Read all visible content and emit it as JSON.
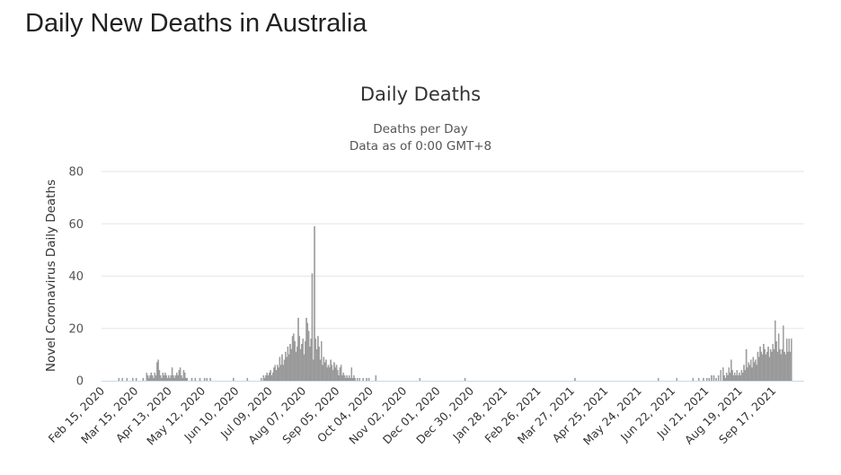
{
  "page": {
    "title": "Daily New Deaths in Australia"
  },
  "chart_data": {
    "type": "bar",
    "title": "Daily Deaths",
    "subtitle_lines": [
      "Deaths per Day",
      "Data as of 0:00 GMT+8"
    ],
    "ylabel": "Novel Coronavirus Daily Deaths",
    "xlabel": "",
    "ylim": [
      0,
      80
    ],
    "y_ticks": [
      0,
      20,
      40,
      60,
      80
    ],
    "grid": true,
    "legend": "none",
    "colors": {
      "bar": "#a0a0a0",
      "bar_stroke": "#8a8a8a",
      "grid": "#e6e6e6",
      "axis": "#ccd6eb"
    },
    "x_start": "2020-02-15",
    "x_end": "2021-10-14",
    "x_tick_labels": [
      "Feb 15, 2020",
      "Mar 15, 2020",
      "Apr 13, 2020",
      "May 12, 2020",
      "Jun 10, 2020",
      "Jul 09, 2020",
      "Aug 07, 2020",
      "Sep 05, 2020",
      "Oct 04, 2020",
      "Nov 02, 2020",
      "Dec 01, 2020",
      "Dec 30, 2020",
      "Jan 28, 2021",
      "Feb 26, 2021",
      "Mar 27, 2021",
      "Apr 25, 2021",
      "May 24, 2021",
      "Jun 22, 2021",
      "Jul 21, 2021",
      "Aug 19, 2021",
      "Sep 17, 2021"
    ],
    "series": [
      {
        "values": [
          {
            "x": "2020-03-01",
            "y": 1
          },
          {
            "x": "2020-03-04",
            "y": 1
          },
          {
            "x": "2020-03-08",
            "y": 1
          },
          {
            "x": "2020-03-13",
            "y": 1
          },
          {
            "x": "2020-03-16",
            "y": 1
          },
          {
            "x": "2020-03-22",
            "y": 1
          },
          {
            "x": "2020-03-25",
            "y": 3
          },
          {
            "x": "2020-03-26",
            "y": 2
          },
          {
            "x": "2020-03-27",
            "y": 1
          },
          {
            "x": "2020-03-28",
            "y": 2
          },
          {
            "x": "2020-03-29",
            "y": 3
          },
          {
            "x": "2020-03-30",
            "y": 2
          },
          {
            "x": "2020-03-31",
            "y": 1
          },
          {
            "x": "2020-04-01",
            "y": 3
          },
          {
            "x": "2020-04-02",
            "y": 2
          },
          {
            "x": "2020-04-03",
            "y": 7
          },
          {
            "x": "2020-04-04",
            "y": 8
          },
          {
            "x": "2020-04-05",
            "y": 4
          },
          {
            "x": "2020-04-06",
            "y": 2
          },
          {
            "x": "2020-04-07",
            "y": 1
          },
          {
            "x": "2020-04-08",
            "y": 3
          },
          {
            "x": "2020-04-09",
            "y": 2
          },
          {
            "x": "2020-04-10",
            "y": 3
          },
          {
            "x": "2020-04-11",
            "y": 2
          },
          {
            "x": "2020-04-12",
            "y": 1
          },
          {
            "x": "2020-04-13",
            "y": 2
          },
          {
            "x": "2020-04-14",
            "y": 1
          },
          {
            "x": "2020-04-15",
            "y": 2
          },
          {
            "x": "2020-04-16",
            "y": 5
          },
          {
            "x": "2020-04-17",
            "y": 2
          },
          {
            "x": "2020-04-18",
            "y": 1
          },
          {
            "x": "2020-04-19",
            "y": 2
          },
          {
            "x": "2020-04-20",
            "y": 3
          },
          {
            "x": "2020-04-21",
            "y": 2
          },
          {
            "x": "2020-04-22",
            "y": 4
          },
          {
            "x": "2020-04-23",
            "y": 5
          },
          {
            "x": "2020-04-24",
            "y": 2
          },
          {
            "x": "2020-04-25",
            "y": 1
          },
          {
            "x": "2020-04-26",
            "y": 4
          },
          {
            "x": "2020-04-27",
            "y": 3
          },
          {
            "x": "2020-04-28",
            "y": 1
          },
          {
            "x": "2020-04-29",
            "y": 1
          },
          {
            "x": "2020-05-03",
            "y": 1
          },
          {
            "x": "2020-05-06",
            "y": 1
          },
          {
            "x": "2020-05-10",
            "y": 1
          },
          {
            "x": "2020-05-14",
            "y": 1
          },
          {
            "x": "2020-05-16",
            "y": 1
          },
          {
            "x": "2020-05-19",
            "y": 1
          },
          {
            "x": "2020-06-08",
            "y": 1
          },
          {
            "x": "2020-06-20",
            "y": 1
          },
          {
            "x": "2020-07-02",
            "y": 1
          },
          {
            "x": "2020-07-04",
            "y": 2
          },
          {
            "x": "2020-07-05",
            "y": 1
          },
          {
            "x": "2020-07-06",
            "y": 2
          },
          {
            "x": "2020-07-07",
            "y": 3
          },
          {
            "x": "2020-07-08",
            "y": 2
          },
          {
            "x": "2020-07-09",
            "y": 3
          },
          {
            "x": "2020-07-10",
            "y": 4
          },
          {
            "x": "2020-07-11",
            "y": 2
          },
          {
            "x": "2020-07-12",
            "y": 3
          },
          {
            "x": "2020-07-13",
            "y": 5
          },
          {
            "x": "2020-07-14",
            "y": 6
          },
          {
            "x": "2020-07-15",
            "y": 4
          },
          {
            "x": "2020-07-16",
            "y": 6
          },
          {
            "x": "2020-07-17",
            "y": 5
          },
          {
            "x": "2020-07-18",
            "y": 9
          },
          {
            "x": "2020-07-19",
            "y": 6
          },
          {
            "x": "2020-07-20",
            "y": 10
          },
          {
            "x": "2020-07-21",
            "y": 6
          },
          {
            "x": "2020-07-22",
            "y": 8
          },
          {
            "x": "2020-07-23",
            "y": 11
          },
          {
            "x": "2020-07-24",
            "y": 9
          },
          {
            "x": "2020-07-25",
            "y": 13
          },
          {
            "x": "2020-07-26",
            "y": 10
          },
          {
            "x": "2020-07-27",
            "y": 14
          },
          {
            "x": "2020-07-28",
            "y": 12
          },
          {
            "x": "2020-07-29",
            "y": 17
          },
          {
            "x": "2020-07-30",
            "y": 18
          },
          {
            "x": "2020-07-31",
            "y": 15
          },
          {
            "x": "2020-08-01",
            "y": 11
          },
          {
            "x": "2020-08-02",
            "y": 13
          },
          {
            "x": "2020-08-03",
            "y": 24
          },
          {
            "x": "2020-08-04",
            "y": 17
          },
          {
            "x": "2020-08-05",
            "y": 12
          },
          {
            "x": "2020-08-06",
            "y": 14
          },
          {
            "x": "2020-08-07",
            "y": 16
          },
          {
            "x": "2020-08-08",
            "y": 10
          },
          {
            "x": "2020-08-09",
            "y": 15
          },
          {
            "x": "2020-08-10",
            "y": 24
          },
          {
            "x": "2020-08-11",
            "y": 22
          },
          {
            "x": "2020-08-12",
            "y": 19
          },
          {
            "x": "2020-08-13",
            "y": 13
          },
          {
            "x": "2020-08-14",
            "y": 16
          },
          {
            "x": "2020-08-15",
            "y": 41
          },
          {
            "x": "2020-08-16",
            "y": 8
          },
          {
            "x": "2020-08-17",
            "y": 59
          },
          {
            "x": "2020-08-18",
            "y": 16
          },
          {
            "x": "2020-08-19",
            "y": 12
          },
          {
            "x": "2020-08-20",
            "y": 17
          },
          {
            "x": "2020-08-21",
            "y": 13
          },
          {
            "x": "2020-08-22",
            "y": 8
          },
          {
            "x": "2020-08-23",
            "y": 15
          },
          {
            "x": "2020-08-24",
            "y": 6
          },
          {
            "x": "2020-08-25",
            "y": 9
          },
          {
            "x": "2020-08-26",
            "y": 7
          },
          {
            "x": "2020-08-27",
            "y": 8
          },
          {
            "x": "2020-08-28",
            "y": 5
          },
          {
            "x": "2020-08-29",
            "y": 6
          },
          {
            "x": "2020-08-30",
            "y": 5
          },
          {
            "x": "2020-08-31",
            "y": 8
          },
          {
            "x": "2020-09-01",
            "y": 6
          },
          {
            "x": "2020-09-02",
            "y": 4
          },
          {
            "x": "2020-09-03",
            "y": 7
          },
          {
            "x": "2020-09-04",
            "y": 5
          },
          {
            "x": "2020-09-05",
            "y": 6
          },
          {
            "x": "2020-09-06",
            "y": 4
          },
          {
            "x": "2020-09-07",
            "y": 2
          },
          {
            "x": "2020-09-08",
            "y": 5
          },
          {
            "x": "2020-09-09",
            "y": 6
          },
          {
            "x": "2020-09-10",
            "y": 2
          },
          {
            "x": "2020-09-11",
            "y": 3
          },
          {
            "x": "2020-09-12",
            "y": 2
          },
          {
            "x": "2020-09-13",
            "y": 1
          },
          {
            "x": "2020-09-14",
            "y": 2
          },
          {
            "x": "2020-09-15",
            "y": 1
          },
          {
            "x": "2020-09-16",
            "y": 2
          },
          {
            "x": "2020-09-17",
            "y": 1
          },
          {
            "x": "2020-09-18",
            "y": 5
          },
          {
            "x": "2020-09-19",
            "y": 1
          },
          {
            "x": "2020-09-20",
            "y": 2
          },
          {
            "x": "2020-09-21",
            "y": 1
          },
          {
            "x": "2020-09-23",
            "y": 1
          },
          {
            "x": "2020-09-25",
            "y": 1
          },
          {
            "x": "2020-09-28",
            "y": 1
          },
          {
            "x": "2020-10-01",
            "y": 1
          },
          {
            "x": "2020-10-03",
            "y": 1
          },
          {
            "x": "2020-10-09",
            "y": 2
          },
          {
            "x": "2020-11-16",
            "y": 1
          },
          {
            "x": "2020-12-25",
            "y": 1
          },
          {
            "x": "2021-03-30",
            "y": 1
          },
          {
            "x": "2021-06-10",
            "y": 1
          },
          {
            "x": "2021-06-26",
            "y": 1
          },
          {
            "x": "2021-07-10",
            "y": 1
          },
          {
            "x": "2021-07-15",
            "y": 1
          },
          {
            "x": "2021-07-19",
            "y": 1
          },
          {
            "x": "2021-07-22",
            "y": 1
          },
          {
            "x": "2021-07-24",
            "y": 1
          },
          {
            "x": "2021-07-26",
            "y": 2
          },
          {
            "x": "2021-07-28",
            "y": 2
          },
          {
            "x": "2021-07-30",
            "y": 1
          },
          {
            "x": "2021-08-01",
            "y": 2
          },
          {
            "x": "2021-08-03",
            "y": 4
          },
          {
            "x": "2021-08-05",
            "y": 5
          },
          {
            "x": "2021-08-06",
            "y": 2
          },
          {
            "x": "2021-08-07",
            "y": 1
          },
          {
            "x": "2021-08-08",
            "y": 3
          },
          {
            "x": "2021-08-09",
            "y": 2
          },
          {
            "x": "2021-08-10",
            "y": 5
          },
          {
            "x": "2021-08-11",
            "y": 3
          },
          {
            "x": "2021-08-12",
            "y": 8
          },
          {
            "x": "2021-08-13",
            "y": 4
          },
          {
            "x": "2021-08-14",
            "y": 2
          },
          {
            "x": "2021-08-15",
            "y": 3
          },
          {
            "x": "2021-08-16",
            "y": 2
          },
          {
            "x": "2021-08-17",
            "y": 4
          },
          {
            "x": "2021-08-18",
            "y": 2
          },
          {
            "x": "2021-08-19",
            "y": 3
          },
          {
            "x": "2021-08-20",
            "y": 2
          },
          {
            "x": "2021-08-21",
            "y": 4
          },
          {
            "x": "2021-08-22",
            "y": 3
          },
          {
            "x": "2021-08-23",
            "y": 6
          },
          {
            "x": "2021-08-24",
            "y": 4
          },
          {
            "x": "2021-08-25",
            "y": 12
          },
          {
            "x": "2021-08-26",
            "y": 5
          },
          {
            "x": "2021-08-27",
            "y": 7
          },
          {
            "x": "2021-08-28",
            "y": 6
          },
          {
            "x": "2021-08-29",
            "y": 8
          },
          {
            "x": "2021-08-30",
            "y": 5
          },
          {
            "x": "2021-08-31",
            "y": 9
          },
          {
            "x": "2021-09-01",
            "y": 7
          },
          {
            "x": "2021-09-02",
            "y": 8
          },
          {
            "x": "2021-09-03",
            "y": 6
          },
          {
            "x": "2021-09-04",
            "y": 11
          },
          {
            "x": "2021-09-05",
            "y": 9
          },
          {
            "x": "2021-09-06",
            "y": 13
          },
          {
            "x": "2021-09-07",
            "y": 11
          },
          {
            "x": "2021-09-08",
            "y": 10
          },
          {
            "x": "2021-09-09",
            "y": 14
          },
          {
            "x": "2021-09-10",
            "y": 12
          },
          {
            "x": "2021-09-11",
            "y": 10
          },
          {
            "x": "2021-09-12",
            "y": 11
          },
          {
            "x": "2021-09-13",
            "y": 13
          },
          {
            "x": "2021-09-14",
            "y": 9
          },
          {
            "x": "2021-09-15",
            "y": 12
          },
          {
            "x": "2021-09-16",
            "y": 11
          },
          {
            "x": "2021-09-17",
            "y": 14
          },
          {
            "x": "2021-09-18",
            "y": 12
          },
          {
            "x": "2021-09-19",
            "y": 23
          },
          {
            "x": "2021-09-20",
            "y": 15
          },
          {
            "x": "2021-09-21",
            "y": 11
          },
          {
            "x": "2021-09-22",
            "y": 18
          },
          {
            "x": "2021-09-23",
            "y": 12
          },
          {
            "x": "2021-09-24",
            "y": 10
          },
          {
            "x": "2021-09-25",
            "y": 12
          },
          {
            "x": "2021-09-26",
            "y": 21
          },
          {
            "x": "2021-09-27",
            "y": 11
          },
          {
            "x": "2021-09-28",
            "y": 10
          },
          {
            "x": "2021-09-29",
            "y": 16
          },
          {
            "x": "2021-09-30",
            "y": 11
          },
          {
            "x": "2021-10-01",
            "y": 16
          },
          {
            "x": "2021-10-02",
            "y": 11
          },
          {
            "x": "2021-10-03",
            "y": 16
          }
        ]
      }
    ]
  }
}
